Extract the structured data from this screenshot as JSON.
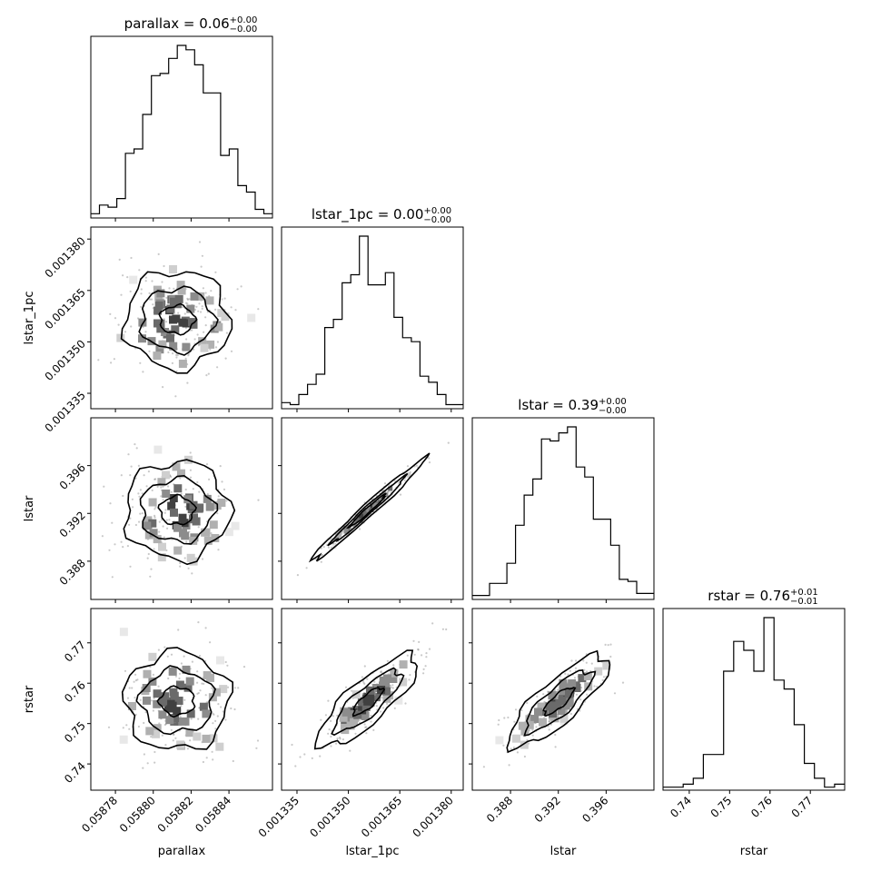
{
  "chart_data": {
    "type": "corner",
    "parameters": [
      {
        "name": "parallax",
        "range": [
          0.058767,
          0.058863
        ],
        "ticks": [
          "0.05878",
          "0.05880",
          "0.05882",
          "0.05884"
        ],
        "tick_values": [
          0.05878,
          0.0588,
          0.05882,
          0.05884
        ],
        "title": {
          "main": "parallax = 0.06",
          "sup": "+0.00",
          "sub": "−0.00"
        }
      },
      {
        "name": "lstar_1pc",
        "range": [
          0.0013305,
          0.0013835
        ],
        "ticks": [
          "0.001335",
          "0.001350",
          "0.001365",
          "0.001380"
        ],
        "tick_values": [
          0.001335,
          0.00135,
          0.001365,
          0.00138
        ],
        "title": {
          "main": "lstar_1pc = 0.00",
          "sup": "+0.00",
          "sub": "−0.00"
        }
      },
      {
        "name": "lstar",
        "range": [
          0.3848,
          0.4
        ],
        "ticks": [
          "0.388",
          "0.392",
          "0.396"
        ],
        "tick_values": [
          0.388,
          0.392,
          0.396
        ],
        "title": {
          "main": "lstar = 0.39",
          "sup": "+0.00",
          "sub": "−0.00"
        }
      },
      {
        "name": "rstar",
        "range": [
          0.7335,
          0.7785
        ],
        "ticks": [
          "0.74",
          "0.75",
          "0.76",
          "0.77"
        ],
        "tick_values": [
          0.74,
          0.75,
          0.76,
          0.77
        ],
        "title": {
          "main": "rstar = 0.76",
          "sup": "+0.01",
          "sub": "−0.01"
        }
      }
    ],
    "histograms": [
      {
        "param": "parallax",
        "counts": [
          2,
          6,
          5,
          9,
          30,
          32,
          48,
          66,
          67,
          74,
          80,
          78,
          71,
          58,
          58,
          29,
          32,
          15,
          12,
          4,
          2
        ]
      },
      {
        "param": "lstar_1pc",
        "counts": [
          3,
          2,
          7,
          12,
          17,
          40,
          44,
          62,
          66,
          85,
          61,
          61,
          67,
          45,
          35,
          33,
          16,
          13,
          7,
          2,
          2
        ]
      },
      {
        "param": "lstar",
        "counts": [
          2,
          2,
          8,
          8,
          18,
          37,
          52,
          60,
          80,
          79,
          83,
          86,
          66,
          61,
          40,
          40,
          27,
          10,
          9,
          3,
          3
        ]
      },
      {
        "param": "rstar",
        "counts": [
          1,
          1,
          2,
          4,
          12,
          12,
          40,
          50,
          47,
          40,
          58,
          37,
          34,
          22,
          9,
          4,
          1,
          2
        ]
      }
    ],
    "pairs": [
      {
        "x": "parallax",
        "y": "lstar_1pc",
        "correlation": 0.0
      },
      {
        "x": "parallax",
        "y": "lstar",
        "correlation": 0.0
      },
      {
        "x": "lstar_1pc",
        "y": "lstar",
        "correlation": 0.98
      },
      {
        "x": "parallax",
        "y": "rstar",
        "correlation": 0.0
      },
      {
        "x": "lstar_1pc",
        "y": "rstar",
        "correlation": 0.85
      },
      {
        "x": "lstar",
        "y": "rstar",
        "correlation": 0.85
      }
    ],
    "colors": {
      "line": "#000000",
      "background": "#ffffff",
      "density": "#000000"
    }
  }
}
